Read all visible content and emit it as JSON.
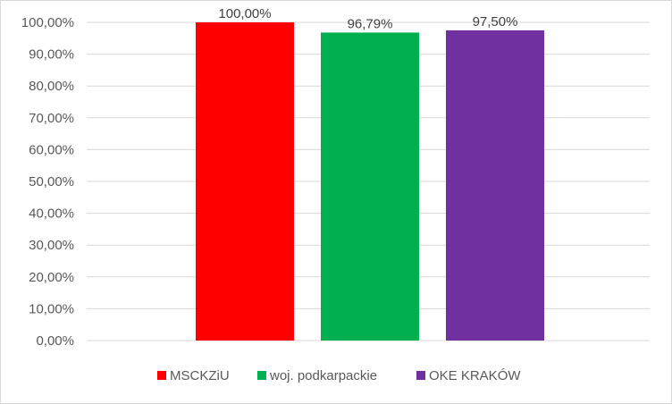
{
  "chart_data": {
    "type": "bar",
    "title": "",
    "xlabel": "",
    "ylabel": "",
    "categories": [
      "MSCKZiU",
      "woj. podkarpackie",
      "OKE KRAKÓW"
    ],
    "values": [
      100.0,
      96.79,
      97.5
    ],
    "value_labels": [
      "100,00%",
      "96,79%",
      "97,50%"
    ],
    "colors": [
      "#ff0000",
      "#00b050",
      "#7030a0"
    ],
    "ylim": [
      0,
      100
    ],
    "y_ticks": [
      0,
      10,
      20,
      30,
      40,
      50,
      60,
      70,
      80,
      90,
      100
    ],
    "y_tick_labels": [
      "0,00%",
      "10,00%",
      "20,00%",
      "30,00%",
      "40,00%",
      "50,00%",
      "60,00%",
      "70,00%",
      "80,00%",
      "90,00%",
      "100,00%"
    ],
    "grid": true,
    "legend": {
      "position": "bottom",
      "entries": [
        "MSCKZiU",
        "woj. podkarpackie",
        "OKE KRAKÓW"
      ]
    }
  }
}
